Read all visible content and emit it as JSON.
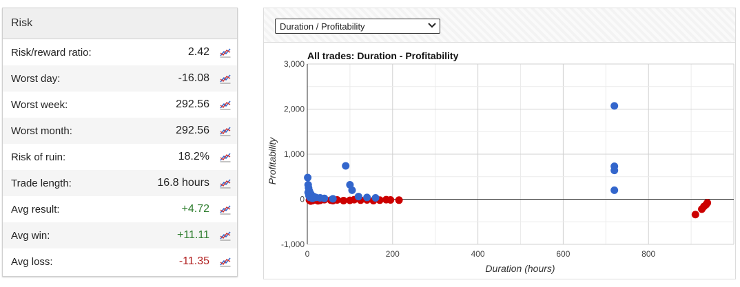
{
  "risk": {
    "title": "Risk",
    "rows": [
      {
        "label": "Risk/reward ratio:",
        "value": "2.42",
        "tone": "neutral"
      },
      {
        "label": "Worst day:",
        "value": "-16.08",
        "tone": "neutral"
      },
      {
        "label": "Worst week:",
        "value": "292.56",
        "tone": "neutral"
      },
      {
        "label": "Worst month:",
        "value": "292.56",
        "tone": "neutral"
      },
      {
        "label": "Risk of ruin:",
        "value": "18.2%",
        "tone": "neutral"
      },
      {
        "label": "Trade length:",
        "value": "16.8 hours",
        "tone": "neutral"
      },
      {
        "label": "Avg result:",
        "value": "+4.72",
        "tone": "pos"
      },
      {
        "label": "Avg win:",
        "value": "+11.11",
        "tone": "pos"
      },
      {
        "label": "Avg loss:",
        "value": "-11.35",
        "tone": "neg"
      }
    ],
    "row_icon": "chart-line-icon"
  },
  "selector": {
    "value": "Duration / Profitability"
  },
  "colors": {
    "win": "#3366cc",
    "loss": "#cc0000"
  },
  "chart_data": {
    "type": "scatter",
    "title": "All trades: Duration - Profitability",
    "xlabel": "Duration (hours)",
    "ylabel": "Profitability",
    "xlim": [
      0,
      1000
    ],
    "ylim": [
      -1000,
      3000
    ],
    "x_ticks": [
      0,
      200,
      400,
      600,
      800
    ],
    "y_ticks": [
      -1000,
      0,
      1000,
      2000,
      3000
    ],
    "y_tick_labels": [
      "-1,000",
      "0",
      "1,000",
      "2,000",
      "3,000"
    ],
    "grid": true,
    "series": [
      {
        "color": "#3366cc",
        "points": [
          [
            1,
            480
          ],
          [
            2,
            320
          ],
          [
            3,
            250
          ],
          [
            5,
            180
          ],
          [
            8,
            120
          ],
          [
            10,
            90
          ],
          [
            15,
            60
          ],
          [
            20,
            40
          ],
          [
            30,
            30
          ],
          [
            40,
            20
          ],
          [
            60,
            10
          ],
          [
            90,
            740
          ],
          [
            100,
            320
          ],
          [
            105,
            200
          ],
          [
            120,
            60
          ],
          [
            140,
            40
          ],
          [
            160,
            30
          ],
          [
            2,
            150
          ],
          [
            4,
            80
          ],
          [
            6,
            40
          ],
          [
            12,
            20
          ],
          [
            720,
            2070
          ],
          [
            720,
            730
          ],
          [
            720,
            640
          ],
          [
            720,
            200
          ]
        ]
      },
      {
        "color": "#cc0000",
        "points": [
          [
            5,
            -20
          ],
          [
            12,
            -30
          ],
          [
            20,
            -15
          ],
          [
            30,
            -25
          ],
          [
            40,
            -10
          ],
          [
            55,
            -20
          ],
          [
            70,
            -15
          ],
          [
            85,
            -30
          ],
          [
            100,
            -25
          ],
          [
            110,
            -10
          ],
          [
            125,
            -20
          ],
          [
            140,
            -15
          ],
          [
            155,
            -30
          ],
          [
            170,
            -20
          ],
          [
            185,
            -10
          ],
          [
            195,
            -15
          ],
          [
            215,
            -20
          ],
          [
            8,
            -40
          ],
          [
            25,
            -35
          ],
          [
            60,
            -30
          ],
          [
            910,
            -340
          ],
          [
            925,
            -220
          ],
          [
            930,
            -160
          ],
          [
            935,
            -120
          ],
          [
            938,
            -80
          ]
        ]
      }
    ]
  }
}
